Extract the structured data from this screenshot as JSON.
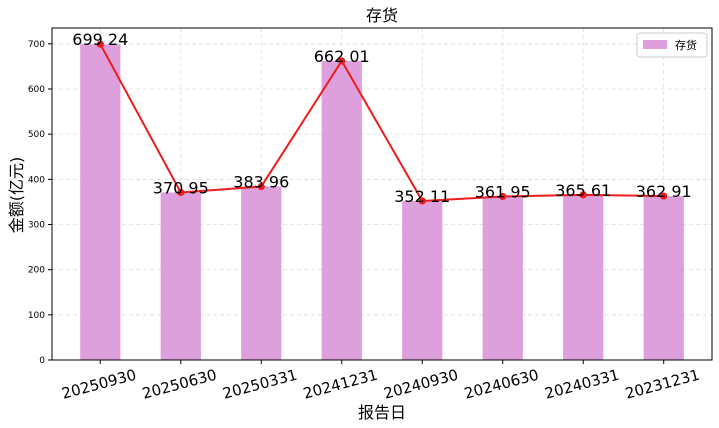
{
  "chart_data": {
    "type": "bar",
    "title": "存货",
    "xlabel": "报告日",
    "ylabel": "金额(亿元)",
    "categories": [
      "20250930",
      "20250630",
      "20250331",
      "20241231",
      "20240930",
      "20240630",
      "20240331",
      "20231231"
    ],
    "series": [
      {
        "name": "存货",
        "values": [
          699.24,
          370.95,
          383.96,
          662.01,
          352.11,
          361.95,
          365.61,
          362.91
        ],
        "color": "#dda0dd"
      }
    ],
    "overlay_line": {
      "type": "line",
      "values": [
        699.24,
        370.95,
        383.96,
        662.01,
        352.11,
        361.95,
        365.61,
        362.91
      ],
      "color": "#ee1c1c",
      "marker": "circle"
    },
    "data_labels": [
      "699 24",
      "370 95",
      "383 96",
      "662 01",
      "352 11",
      "361 95",
      "365 61",
      "362 91"
    ],
    "yticks": [
      0,
      100,
      200,
      300,
      400,
      500,
      600,
      700
    ],
    "ylim": [
      0,
      735
    ],
    "grid": true,
    "legend": "top-right"
  }
}
